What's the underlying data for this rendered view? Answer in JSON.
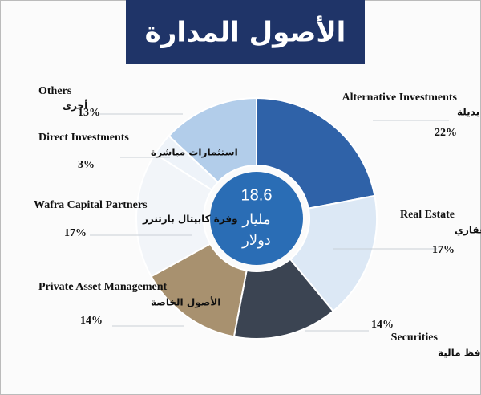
{
  "chart_data": {
    "type": "donut",
    "title": "الأصول المدارة",
    "center_value": 18.6,
    "center_unit_lines": [
      "مليار",
      "دولار"
    ],
    "categories": [
      "Alternative Investments",
      "Real Estate",
      "Securities",
      "Private Asset Management",
      "Wafra Capital Partners",
      "Direct Investments",
      "Others"
    ],
    "arabic_labels": [
      "استثمارات بديلة",
      "استثماري عقاري",
      "محافظ مالية",
      "الأصول الخاصة",
      "وفرة كابيتال بارتنرز",
      "استثمارات مباشرة",
      "أخرى"
    ],
    "values": [
      22,
      17,
      14,
      14,
      17,
      3,
      13
    ],
    "value_labels": [
      "22%",
      "17%",
      "14%",
      "14%",
      "17%",
      "3%",
      "13%"
    ],
    "colors": [
      "#2f62a8",
      "#dce8f5",
      "#3b4452",
      "#a8916f",
      "#f2f5f9",
      "#eef3f9",
      "#b2cdea"
    ]
  }
}
